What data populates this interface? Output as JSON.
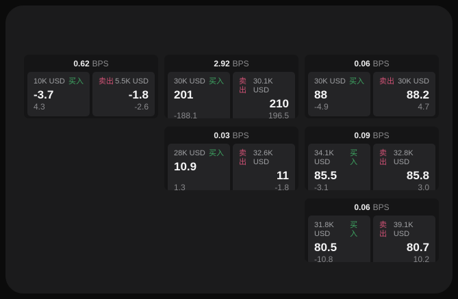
{
  "labels": {
    "bps_unit": "BPS",
    "buy": "买入",
    "sell": "卖出"
  },
  "colors": {
    "buy_green": "#3ea662",
    "sell_pink": "#ce5174",
    "panel_bg": "#1b1b1c",
    "card_bg": "#151516",
    "pane_bg": "#242426"
  },
  "cards": [
    {
      "bps": "0.62",
      "buy": {
        "amount": "10K USD",
        "value": "-3.7",
        "change": "4.3"
      },
      "sell": {
        "amount": "5.5K USD",
        "value": "-1.8",
        "change": "-2.6"
      }
    },
    {
      "bps": "2.92",
      "buy": {
        "amount": "30K USD",
        "value": "201",
        "change": "-188.1"
      },
      "sell": {
        "amount": "30.1K USD",
        "value": "210",
        "change": "196.5"
      }
    },
    {
      "bps": "0.06",
      "buy": {
        "amount": "30K USD",
        "value": "88",
        "change": "-4.9"
      },
      "sell": {
        "amount": "30K USD",
        "value": "88.2",
        "change": "4.7"
      }
    },
    {
      "bps": "0.03",
      "buy": {
        "amount": "28K USD",
        "value": "10.9",
        "change": "1.3"
      },
      "sell": {
        "amount": "32.6K USD",
        "value": "11",
        "change": "-1.8"
      }
    },
    {
      "bps": "0.09",
      "buy": {
        "amount": "34.1K USD",
        "value": "85.5",
        "change": "-3.1"
      },
      "sell": {
        "amount": "32.8K USD",
        "value": "85.8",
        "change": "3.0"
      }
    },
    {
      "bps": "0.06",
      "buy": {
        "amount": "31.8K USD",
        "value": "80.5",
        "change": "-10.8"
      },
      "sell": {
        "amount": "39.1K USD",
        "value": "80.7",
        "change": "10.2"
      }
    }
  ]
}
